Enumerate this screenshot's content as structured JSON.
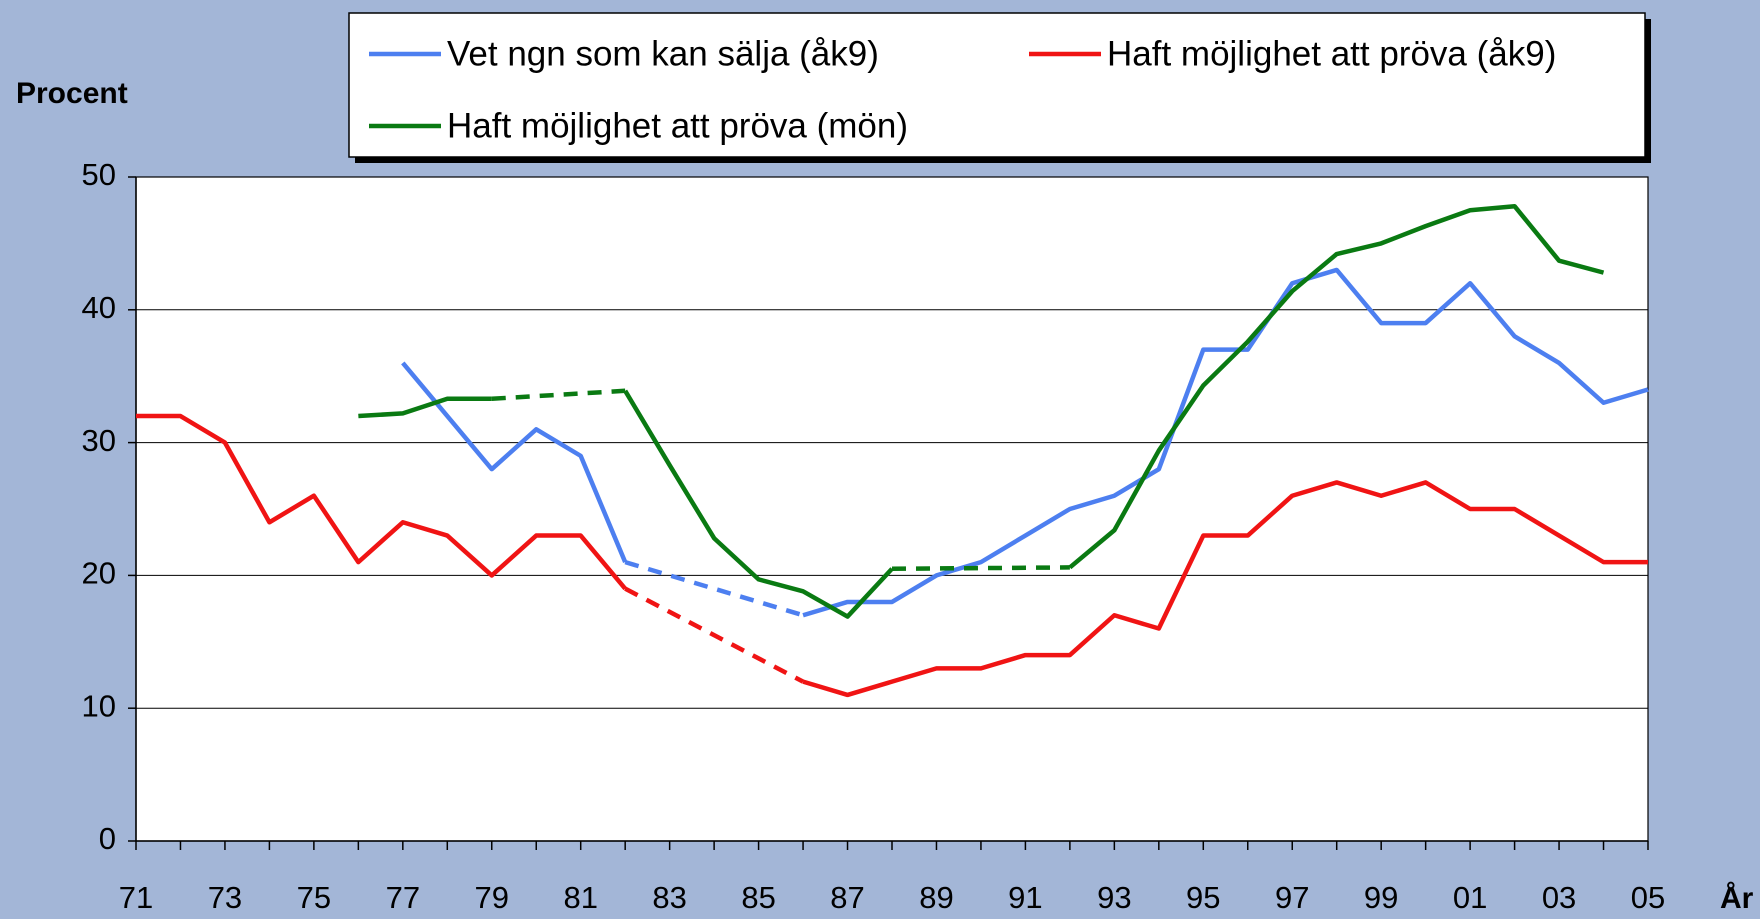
{
  "chart_data": {
    "type": "line",
    "y_axis_label": "Procent",
    "x_axis_label": "År",
    "categories": [
      "71",
      null,
      "73",
      null,
      "75",
      null,
      "77",
      null,
      "79",
      null,
      "81",
      null,
      "83",
      null,
      "85",
      null,
      "87",
      null,
      "89",
      null,
      "91",
      null,
      "93",
      null,
      "95",
      null,
      "97",
      null,
      "99",
      null,
      "01",
      null,
      "03",
      null,
      "05"
    ],
    "series": [
      {
        "name": "Vet ngn som kan sälja (åk9)",
        "color": "#4d7ff0",
        "values": [
          null,
          null,
          null,
          null,
          null,
          null,
          36,
          32,
          28,
          31,
          29,
          21,
          null,
          null,
          null,
          17,
          18,
          18,
          20,
          21,
          23,
          25,
          26,
          28,
          37,
          37,
          42,
          43,
          39,
          39,
          42,
          38,
          36,
          33,
          34
        ]
      },
      {
        "name": "Haft möjlighet att pröva (åk9)",
        "color": "#f01414",
        "values": [
          32,
          32,
          30,
          24,
          26,
          21,
          24,
          23,
          20,
          23,
          23,
          19,
          null,
          null,
          null,
          12,
          11,
          12,
          13,
          13,
          14,
          14,
          17,
          16,
          23,
          23,
          26,
          27,
          26,
          27,
          25,
          25,
          23,
          21,
          21
        ]
      },
      {
        "name": "Haft möjlighet att pröva (mön)",
        "color": "#0a7a12",
        "values": [
          null,
          null,
          null,
          null,
          null,
          32,
          32.2,
          33.3,
          33.3,
          null,
          null,
          33.9,
          28.3,
          22.8,
          19.7,
          18.8,
          16.9,
          20.5,
          null,
          null,
          null,
          20.6,
          23.4,
          29.4,
          34.3,
          37.6,
          41.4,
          44.2,
          45.0,
          46.3,
          47.5,
          47.8,
          43.7,
          42.8,
          null
        ]
      }
    ],
    "ylim": [
      0,
      50
    ],
    "yticks": [
      0,
      10,
      20,
      30,
      40,
      50
    ],
    "grid": true,
    "dashed_gaps": true,
    "legend": "top"
  }
}
